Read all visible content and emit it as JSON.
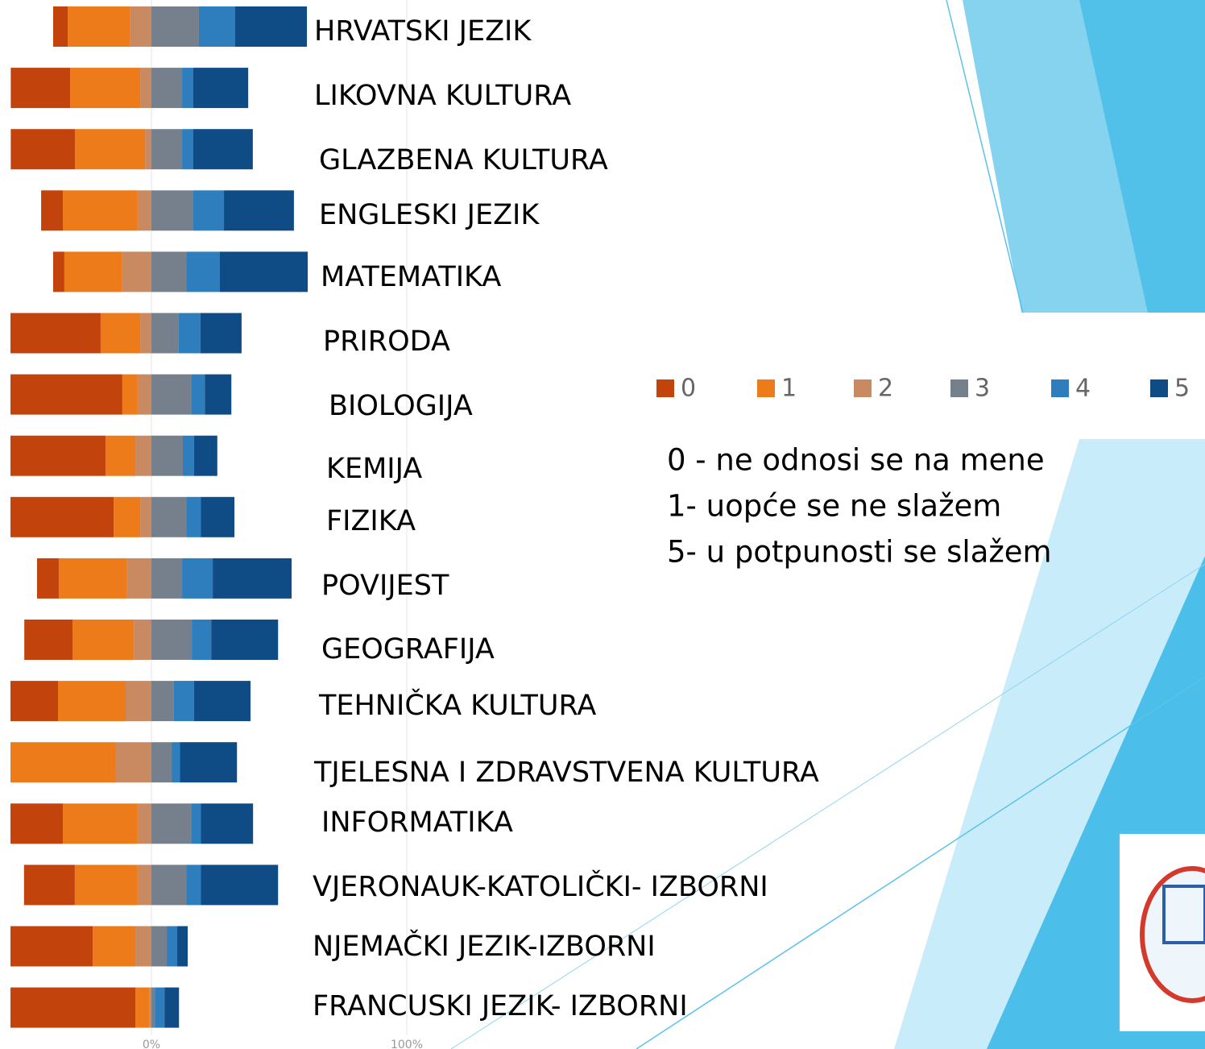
{
  "chart_data": {
    "type": "diverging-stacked-bar",
    "categories": [
      "HRVATSKI JEZIK",
      "LIKOVNA KULTURA",
      "GLAZBENA KULTURA",
      "ENGLESKI JEZIK",
      "MATEMATIKA",
      "PRIRODA",
      "BIOLOGIJA",
      "KEMIJA",
      "FIZIKA",
      "POVIJEST",
      "GEOGRAFIJA",
      "TEHNIČKA KULTURA",
      "TJELESNA I ZDRAVSTVENA KULTURA",
      "INFORMATIKA",
      "VJERONAUK-KATOLIČKI- IZBORNI",
      "NJEMAČKI JEZIK-IZBORNI",
      "FRANCUSKI JEZIK- IZBORNI"
    ],
    "series": [
      {
        "name": "0",
        "color": "#c3430c",
        "values": [
          5.7,
          23.3,
          25.2,
          8.5,
          4.4,
          35.3,
          43.8,
          37.2,
          40.4,
          8.5,
          18.9,
          18.6,
          0,
          20.5,
          19.9,
          32.2,
          48.9
        ]
      },
      {
        "name": "1",
        "color": "#ed7b1a",
        "values": [
          24.3,
          27.4,
          27.4,
          29.3,
          22.7,
          15.5,
          6.0,
          11.7,
          10.4,
          26.8,
          24.0,
          26.5,
          41.3,
          29.3,
          24.6,
          16.7,
          5.4
        ]
      },
      {
        "name": "2",
        "color": "#c98a62",
        "values": [
          8.5,
          4.4,
          2.5,
          5.4,
          11.4,
          4.4,
          5.4,
          6.3,
          4.4,
          9.5,
          6.9,
          10.1,
          13.9,
          5.4,
          5.4,
          6.3,
          0.9
        ]
      },
      {
        "name": "3",
        "color": "#76808c",
        "values": [
          18.6,
          12.0,
          12.0,
          16.4,
          13.6,
          10.7,
          15.5,
          12.3,
          13.6,
          12.0,
          15.8,
          8.8,
          7.9,
          15.5,
          13.6,
          6.0,
          1.3
        ]
      },
      {
        "name": "4",
        "color": "#2e7dbd",
        "values": [
          14.2,
          4.4,
          4.4,
          12.0,
          13.2,
          8.5,
          5.4,
          4.4,
          5.7,
          12.0,
          7.6,
          7.9,
          3.2,
          3.8,
          5.7,
          4.1,
          3.8
        ]
      },
      {
        "name": "5",
        "color": "#0f4b85",
        "values": [
          28.1,
          21.5,
          23.3,
          27.4,
          34.4,
          16.1,
          10.4,
          9.1,
          13.2,
          30.9,
          26.2,
          22.1,
          22.4,
          20.5,
          30.3,
          4.1,
          5.7
        ]
      }
    ],
    "xlim": [
      -56,
      100
    ],
    "xticks": [
      {
        "value": 0,
        "label": "0%"
      },
      {
        "value": 100,
        "label": "100%"
      }
    ],
    "grid": true,
    "notes": [
      "0 - ne odnosi se na mene",
      "1- uopće se ne slažem",
      "5- u potpunosti se slažem"
    ]
  }
}
